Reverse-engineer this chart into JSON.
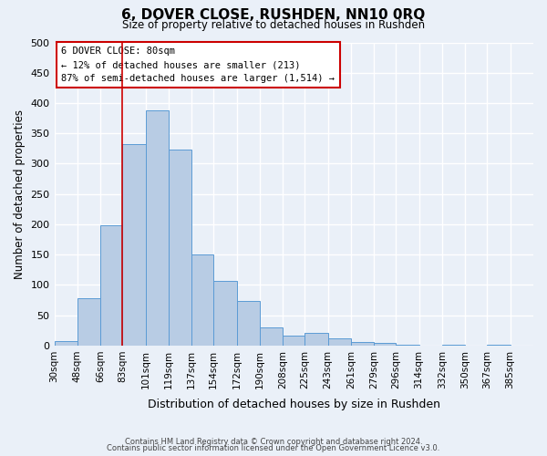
{
  "title": "6, DOVER CLOSE, RUSHDEN, NN10 0RQ",
  "subtitle": "Size of property relative to detached houses in Rushden",
  "xlabel": "Distribution of detached houses by size in Rushden",
  "ylabel": "Number of detached properties",
  "bar_color": "#b8cce4",
  "bar_edge_color": "#5b9bd5",
  "background_color": "#eaf0f8",
  "grid_color": "#ffffff",
  "bin_labels": [
    "30sqm",
    "48sqm",
    "66sqm",
    "83sqm",
    "101sqm",
    "119sqm",
    "137sqm",
    "154sqm",
    "172sqm",
    "190sqm",
    "208sqm",
    "225sqm",
    "243sqm",
    "261sqm",
    "279sqm",
    "296sqm",
    "314sqm",
    "332sqm",
    "350sqm",
    "367sqm",
    "385sqm"
  ],
  "bin_edges": [
    30,
    48,
    66,
    83,
    101,
    119,
    137,
    154,
    172,
    190,
    208,
    225,
    243,
    261,
    279,
    296,
    314,
    332,
    350,
    367,
    385,
    403
  ],
  "bar_heights": [
    8,
    78,
    198,
    333,
    388,
    323,
    150,
    107,
    73,
    30,
    17,
    21,
    12,
    6,
    4,
    2,
    0,
    2,
    0,
    2,
    0
  ],
  "vline_x": 83,
  "vline_color": "#cc0000",
  "annotation_title": "6 DOVER CLOSE: 80sqm",
  "annotation_line1": "← 12% of detached houses are smaller (213)",
  "annotation_line2": "87% of semi-detached houses are larger (1,514) →",
  "annotation_box_color": "#ffffff",
  "annotation_box_edge": "#cc0000",
  "ylim": [
    0,
    500
  ],
  "yticks": [
    0,
    50,
    100,
    150,
    200,
    250,
    300,
    350,
    400,
    450,
    500
  ],
  "footer1": "Contains HM Land Registry data © Crown copyright and database right 2024.",
  "footer2": "Contains public sector information licensed under the Open Government Licence v3.0."
}
